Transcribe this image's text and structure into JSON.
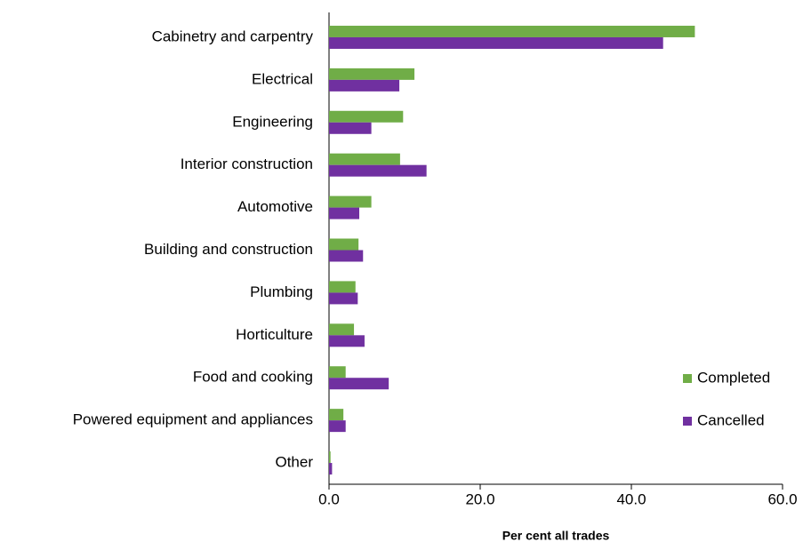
{
  "chart_data": {
    "type": "hbar",
    "categories": [
      "Cabinetry and carpentry",
      "Electrical",
      "Engineering",
      "Interior construction",
      "Automotive",
      "Building and construction",
      "Plumbing",
      "Horticulture",
      "Food and cooking",
      "Powered equipment and appliances",
      "Other"
    ],
    "series": [
      {
        "name": "Completed",
        "color": "#70ad47",
        "values": [
          48.4,
          11.3,
          9.8,
          9.4,
          5.6,
          3.9,
          3.5,
          3.3,
          2.2,
          1.9,
          0.2
        ]
      },
      {
        "name": "Cancelled",
        "color": "#7030a0",
        "values": [
          44.2,
          9.3,
          5.6,
          12.9,
          4.0,
          4.5,
          3.8,
          4.7,
          7.9,
          2.2,
          0.4
        ]
      }
    ],
    "xlim": [
      0,
      60
    ],
    "xticks": [
      {
        "value": 0,
        "label": "0.0"
      },
      {
        "value": 20,
        "label": "20.0"
      },
      {
        "value": 40,
        "label": "40.0"
      },
      {
        "value": 60,
        "label": "60.0"
      }
    ],
    "x_label": "Per cent all trades",
    "grid": false,
    "legend": "right"
  }
}
